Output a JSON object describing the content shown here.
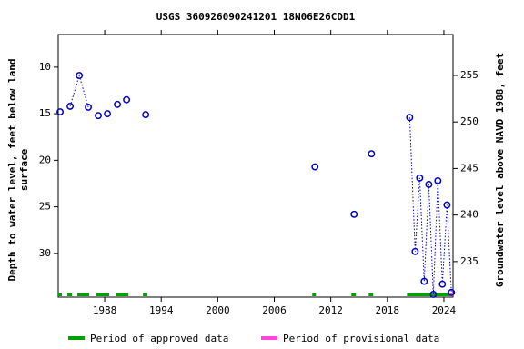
{
  "chart_data": {
    "type": "scatter",
    "title": "USGS 360926090241201 18N06E26CDD1",
    "ylabel": [
      "Depth to water level, feet below land",
      "surface"
    ],
    "y2label": "Groundwater level above NAVD 1988, feet",
    "xlim": [
      1983.07,
      2024.97
    ],
    "xticks": [
      1988,
      1994,
      2000,
      2006,
      2012,
      2018,
      2024
    ],
    "ylim": [
      6.5,
      34.7
    ],
    "yticks": [
      10,
      15,
      20,
      25,
      30
    ],
    "y_inverted": true,
    "y2lim": [
      259.39,
      231.18
    ],
    "y2ticks": [
      235,
      240,
      245,
      250,
      255
    ],
    "series": [
      {
        "name": "Depth to water level",
        "color": "#0000cc",
        "x": [
          1983.27,
          null,
          1984.33,
          1985.3,
          1986.26,
          null,
          1987.32,
          null,
          1988.29,
          null,
          1989.35,
          null,
          1990.32,
          null,
          1992.35,
          null,
          2010.32,
          null,
          2014.47,
          null,
          2016.31,
          null,
          2020.37,
          2020.95,
          2021.43,
          2021.91,
          2022.4,
          2022.88,
          2023.36,
          2023.84,
          2024.33,
          2024.8
        ],
        "values": [
          14.8,
          null,
          14.2,
          10.9,
          14.3,
          null,
          15.2,
          null,
          15.0,
          null,
          14.0,
          null,
          13.5,
          null,
          15.1,
          null,
          20.7,
          null,
          25.8,
          null,
          19.3,
          null,
          15.4,
          29.8,
          21.9,
          33.0,
          22.6,
          34.4,
          22.2,
          33.3,
          24.8,
          34.2
        ]
      }
    ],
    "legend": [
      {
        "label": "Period of approved data",
        "color": "#00a000"
      },
      {
        "label": "Period of provisional data",
        "color": "#ff44dd"
      }
    ],
    "approved_periods": [
      [
        1983.07,
        1983.46
      ],
      [
        1984.04,
        1984.52
      ],
      [
        1985.1,
        1986.36
      ],
      [
        1987.13,
        1988.48
      ],
      [
        1989.16,
        1990.51
      ],
      [
        1992.06,
        1992.54
      ],
      [
        2010.03,
        2010.41
      ],
      [
        2014.18,
        2014.66
      ],
      [
        2016.02,
        2016.5
      ],
      [
        2020.08,
        2024.62
      ]
    ],
    "provisional_periods": [
      [
        2024.62,
        2024.97
      ]
    ]
  }
}
